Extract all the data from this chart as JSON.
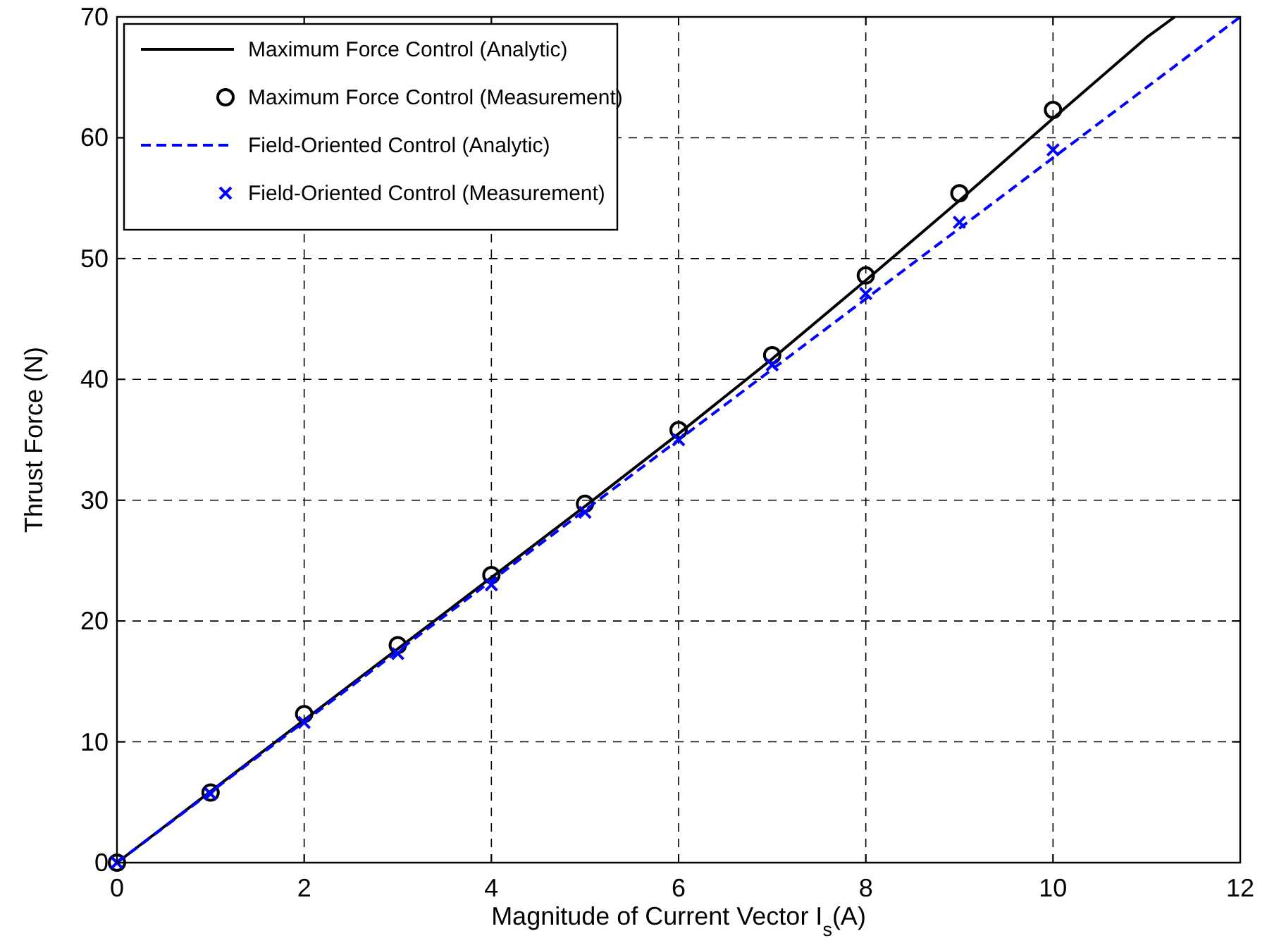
{
  "chart_data": {
    "type": "line",
    "xlabel": "Magnitude of Current Vector I$_{s}$(A)",
    "ylabel": "Thrust Force (N)",
    "xlim": [
      0,
      12
    ],
    "ylim": [
      0,
      70
    ],
    "xticks": [
      0,
      2,
      4,
      6,
      8,
      10,
      12
    ],
    "yticks": [
      0,
      10,
      20,
      30,
      40,
      50,
      60,
      70
    ],
    "grid": true,
    "legend": "top left",
    "series": [
      {
        "name": "Maximum Force Control (Analytic)",
        "color": "#000000",
        "line_style": "solid",
        "marker": "none",
        "x": [
          0,
          1,
          2,
          3,
          4,
          5,
          6,
          7,
          8,
          9,
          10,
          11,
          11.3
        ],
        "values": [
          0,
          5.9,
          11.8,
          17.7,
          23.6,
          29.5,
          35.5,
          41.7,
          48.2,
          54.8,
          61.6,
          68.3,
          70
        ]
      },
      {
        "name": "Maximum Force Control (Measurement)",
        "type": "scatter",
        "color": "#000000",
        "marker": "circle",
        "x": [
          0,
          1,
          2,
          3,
          4,
          5,
          6,
          7,
          8,
          9,
          10
        ],
        "values": [
          0,
          5.8,
          12.3,
          18,
          23.8,
          29.7,
          35.8,
          42,
          48.6,
          55.4,
          62.3
        ]
      },
      {
        "name": "Field-Oriented Control (Analytic)",
        "color": "#0000ff",
        "line_style": "dashed",
        "marker": "none",
        "x": [
          0,
          12
        ],
        "values": [
          0,
          70
        ]
      },
      {
        "name": "Field-Oriented Control (Measurement)",
        "type": "scatter",
        "color": "#0000ff",
        "marker": "cross",
        "x": [
          0,
          1,
          2,
          3,
          4,
          5,
          6,
          7,
          8,
          9,
          10
        ],
        "values": [
          0,
          5.7,
          11.6,
          17.3,
          23,
          29,
          35,
          41.2,
          47.1,
          53,
          59
        ]
      }
    ]
  }
}
